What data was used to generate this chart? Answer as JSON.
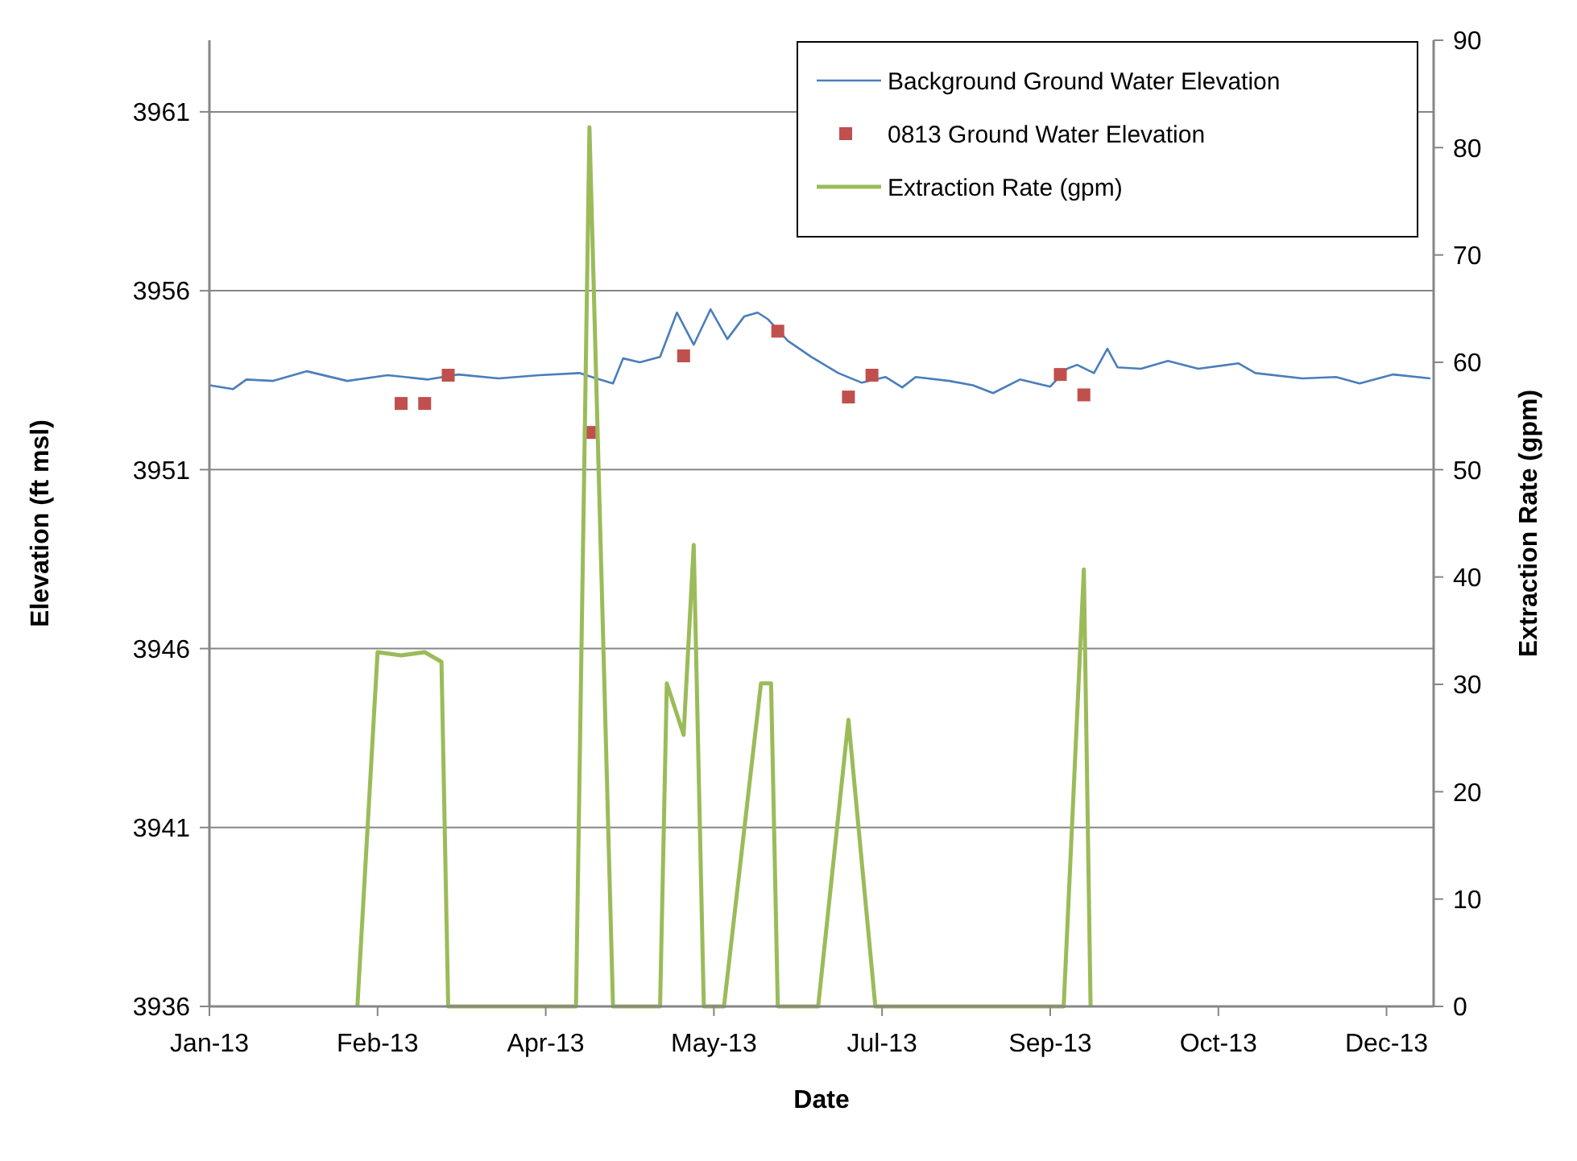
{
  "chart_data": {
    "type": "line",
    "xlabel": "Date",
    "ylabel": "Elevation (ft msl)",
    "y2label": "Extraction Rate (gpm)",
    "xlim": [
      "2013-01-01",
      "2013-12-31"
    ],
    "xticks": [
      {
        "value": "2013-01-01",
        "label": "Jan-13"
      },
      {
        "value": "2013-02-20",
        "label": "Feb-13"
      },
      {
        "value": "2013-04-11",
        "label": "Apr-13"
      },
      {
        "value": "2013-05-31",
        "label": "May-13"
      },
      {
        "value": "2013-07-20",
        "label": "Jul-13"
      },
      {
        "value": "2013-09-08",
        "label": "Sep-13"
      },
      {
        "value": "2013-10-28",
        "label": "Oct-13"
      },
      {
        "value": "2013-12-17",
        "label": "Dec-13"
      }
    ],
    "ylim": [
      3936,
      3963
    ],
    "yticks": [
      3936,
      3941,
      3946,
      3951,
      3956,
      3961
    ],
    "y2lim": [
      0,
      90
    ],
    "y2ticks": [
      0,
      10,
      20,
      30,
      40,
      50,
      60,
      70,
      80,
      90
    ],
    "grid": "y",
    "legend": "top right",
    "series": [
      {
        "name": "Background Ground Water Elevation",
        "type": "line",
        "color": "#4a7ebb",
        "marker": "none",
        "x": [
          "2013-01-01",
          "2013-01-08",
          "2013-01-12",
          "2013-01-20",
          "2013-01-30",
          "2013-02-11",
          "2013-02-23",
          "2013-03-07",
          "2013-03-16",
          "2013-03-28",
          "2013-04-09",
          "2013-04-21",
          "2013-04-26",
          "2013-05-01",
          "2013-05-04",
          "2013-05-09",
          "2013-05-15",
          "2013-05-20",
          "2013-05-25",
          "2013-05-30",
          "2013-06-04",
          "2013-06-09",
          "2013-06-13",
          "2013-06-16",
          "2013-06-22",
          "2013-06-29",
          "2013-07-07",
          "2013-07-14",
          "2013-07-21",
          "2013-07-26",
          "2013-07-30",
          "2013-08-09",
          "2013-08-16",
          "2013-08-22",
          "2013-08-30",
          "2013-09-08",
          "2013-09-13",
          "2013-09-16",
          "2013-09-21",
          "2013-09-25",
          "2013-09-28",
          "2013-10-05",
          "2013-10-13",
          "2013-10-22",
          "2013-11-03",
          "2013-11-08",
          "2013-11-22",
          "2013-12-02",
          "2013-12-09",
          "2013-12-19",
          "2013-12-30"
        ],
        "values": [
          3953.36,
          3953.25,
          3953.52,
          3953.48,
          3953.75,
          3953.48,
          3953.64,
          3953.52,
          3953.66,
          3953.55,
          3953.64,
          3953.7,
          3953.55,
          3953.41,
          3954.11,
          3954.0,
          3954.15,
          3955.39,
          3954.49,
          3955.48,
          3954.65,
          3955.28,
          3955.39,
          3955.21,
          3954.6,
          3954.15,
          3953.7,
          3953.43,
          3953.59,
          3953.3,
          3953.59,
          3953.48,
          3953.36,
          3953.14,
          3953.52,
          3953.32,
          3953.82,
          3953.93,
          3953.7,
          3954.38,
          3953.86,
          3953.82,
          3954.04,
          3953.82,
          3953.97,
          3953.7,
          3953.55,
          3953.59,
          3953.41,
          3953.66,
          3953.55
        ]
      },
      {
        "name": "0813 Ground Water Elevation",
        "type": "scatter",
        "color": "#c0504d",
        "marker": "square",
        "x": [
          "2013-02-27",
          "2013-03-06",
          "2013-03-13",
          "2013-04-24",
          "2013-05-22",
          "2013-06-19",
          "2013-07-10",
          "2013-07-17",
          "2013-09-11",
          "2013-09-18"
        ],
        "values": [
          3952.85,
          3952.85,
          3953.64,
          3952.04,
          3954.18,
          3954.87,
          3953.03,
          3953.64,
          3953.66,
          3953.09
        ]
      },
      {
        "name": "Extraction Rate (gpm)",
        "type": "line",
        "axis": "y2",
        "color": "#9bbb59",
        "marker": "none",
        "x": [
          "2013-02-14",
          "2013-02-20",
          "2013-02-27",
          "2013-03-06",
          "2013-03-11",
          "2013-03-13",
          "2013-04-20",
          "2013-04-24",
          "2013-05-01",
          "2013-05-15",
          "2013-05-17",
          "2013-05-22",
          "2013-05-25",
          "2013-05-28",
          "2013-06-03",
          "2013-06-14",
          "2013-06-17",
          "2013-06-19",
          "2013-07-01",
          "2013-07-10",
          "2013-07-18",
          "2013-09-12",
          "2013-09-18",
          "2013-09-20"
        ],
        "values": [
          0,
          33,
          32.7,
          33,
          32.1,
          0,
          0,
          81.9,
          0,
          0,
          30.1,
          25.3,
          43,
          0,
          0,
          30.1,
          30.1,
          0,
          0,
          26.7,
          0,
          0,
          40.7,
          0
        ]
      }
    ]
  }
}
